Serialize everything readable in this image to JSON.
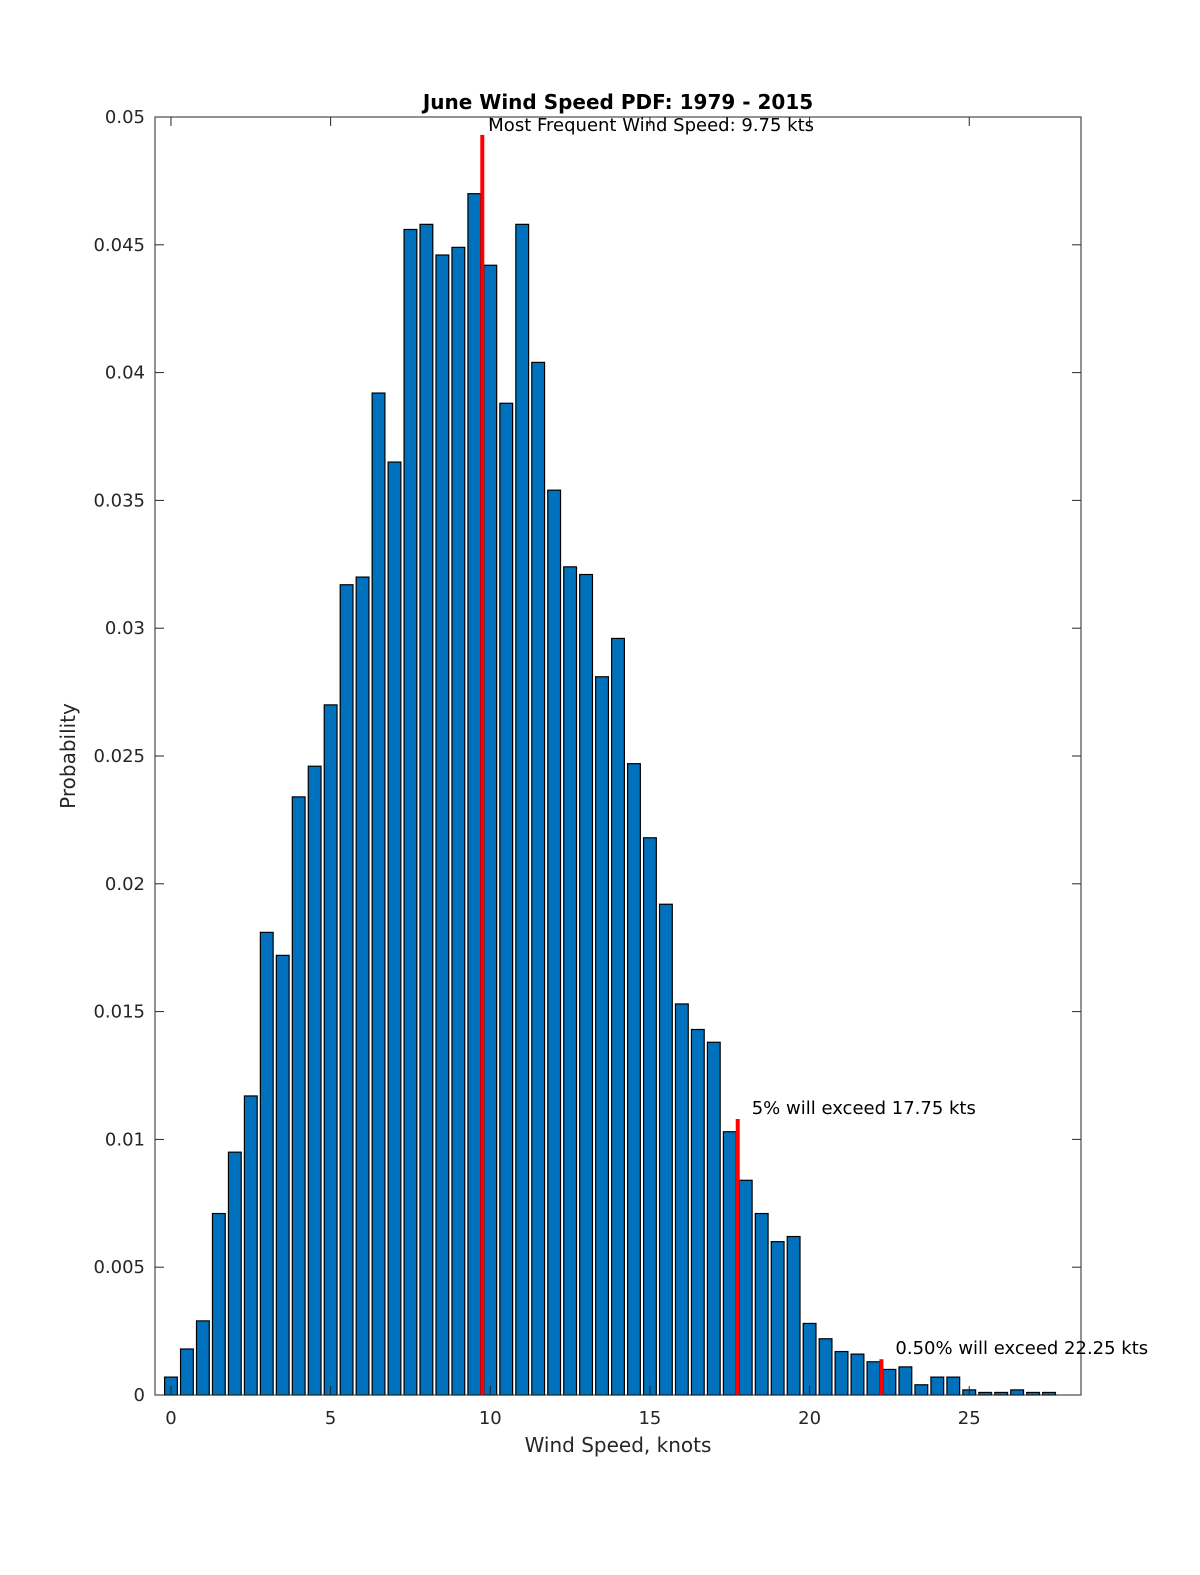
{
  "chart_data": {
    "type": "bar",
    "title": "June Wind Speed PDF: 1979 - 2015",
    "xlabel": "Wind Speed, knots",
    "ylabel": "Probability",
    "xlim": [
      -0.5,
      28.5
    ],
    "ylim": [
      0,
      0.05
    ],
    "xticks": [
      0,
      5,
      10,
      15,
      20,
      25
    ],
    "xtick_labels": [
      "0",
      "5",
      "10",
      "15",
      "20",
      "25"
    ],
    "yticks": [
      0,
      0.005,
      0.01,
      0.015,
      0.02,
      0.025,
      0.03,
      0.035,
      0.04,
      0.045,
      0.05
    ],
    "ytick_labels": [
      "0",
      "0.005",
      "0.01",
      "0.015",
      "0.02",
      "0.025",
      "0.03",
      "0.035",
      "0.04",
      "0.045",
      "0.05"
    ],
    "grid": false,
    "bar_color": "#0072BD",
    "x": [
      0,
      0.5,
      1,
      1.5,
      2,
      2.5,
      3,
      3.5,
      4,
      4.5,
      5,
      5.5,
      6,
      6.5,
      7,
      7.5,
      8,
      8.5,
      9,
      9.5,
      10,
      10.5,
      11,
      11.5,
      12,
      12.5,
      13,
      13.5,
      14,
      14.5,
      15,
      15.5,
      16,
      16.5,
      17,
      17.5,
      18,
      18.5,
      19,
      19.5,
      20,
      20.5,
      21,
      21.5,
      22,
      22.5,
      23,
      23.5,
      24,
      24.5,
      25,
      25.5,
      26,
      26.5,
      27,
      27.5,
      28
    ],
    "values": [
      0.0007,
      0.0018,
      0.0029,
      0.0071,
      0.0095,
      0.0117,
      0.0181,
      0.0172,
      0.0234,
      0.0246,
      0.027,
      0.0317,
      0.032,
      0.0392,
      0.0365,
      0.0456,
      0.0458,
      0.0446,
      0.0449,
      0.047,
      0.0442,
      0.0388,
      0.0458,
      0.0404,
      0.0354,
      0.0324,
      0.0321,
      0.0281,
      0.0296,
      0.0247,
      0.0218,
      0.0192,
      0.0153,
      0.0143,
      0.0138,
      0.0103,
      0.0084,
      0.0071,
      0.006,
      0.0062,
      0.0028,
      0.0022,
      0.0017,
      0.0016,
      0.0013,
      0.001,
      0.0011,
      0.0004,
      0.0007,
      0.0007,
      0.0002,
      0.0001,
      0.0001,
      0.0002,
      0.0001,
      0.0001,
      0.0
    ],
    "annotations": [
      {
        "text": "Most Frequent Wind Speed: 9.75 kts",
        "x": 9.75,
        "line_top": 0.0493,
        "color": "#FF0000"
      },
      {
        "text": "5% will exceed 17.75 kts",
        "x": 17.75,
        "line_top": 0.0108,
        "color": "#FF0000"
      },
      {
        "text": "0.50% will exceed 22.25 kts",
        "x": 22.25,
        "line_top": 0.0014,
        "color": "#FF0000"
      }
    ]
  }
}
